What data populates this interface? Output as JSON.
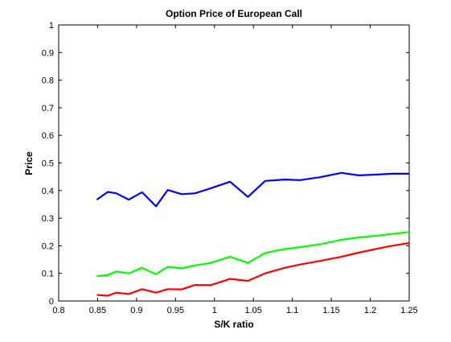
{
  "chart_data": {
    "type": "line",
    "title": "Option Price of European Call",
    "xlabel": "S/K ratio",
    "ylabel": "Price",
    "xlim": [
      0.8,
      1.25
    ],
    "ylim": [
      0,
      1
    ],
    "xticks": [
      0.8,
      0.85,
      0.9,
      0.95,
      1,
      1.05,
      1.1,
      1.15,
      1.2,
      1.25
    ],
    "xtick_labels": [
      "0.8",
      "0.85",
      "0.9",
      "0.95",
      "1",
      "1.05",
      "1.1",
      "1.15",
      "1.2",
      "1.25"
    ],
    "yticks": [
      0,
      0.1,
      0.2,
      0.3,
      0.4,
      0.5,
      0.6,
      0.7,
      0.8,
      0.9,
      1
    ],
    "ytick_labels": [
      "0",
      "0.1",
      "0.2",
      "0.3",
      "0.4",
      "0.5",
      "0.6",
      "0.7",
      "0.8",
      "0.9",
      "1"
    ],
    "grid": false,
    "legend": false,
    "series": [
      {
        "color": "#0000ff",
        "x": [
          0.849,
          0.863,
          0.874,
          0.89,
          0.907,
          0.925,
          0.94,
          0.958,
          0.975,
          0.995,
          1.02,
          1.043,
          1.065,
          1.09,
          1.11,
          1.135,
          1.163,
          1.185,
          1.21,
          1.228,
          1.25
        ],
        "y": [
          0.367,
          0.395,
          0.39,
          0.367,
          0.394,
          0.343,
          0.402,
          0.387,
          0.39,
          0.408,
          0.432,
          0.377,
          0.435,
          0.44,
          0.438,
          0.448,
          0.464,
          0.455,
          0.458,
          0.461,
          0.461
        ]
      },
      {
        "color": "#00ff00",
        "x": [
          0.849,
          0.863,
          0.874,
          0.89,
          0.907,
          0.925,
          0.94,
          0.958,
          0.975,
          0.995,
          1.02,
          1.043,
          1.065,
          1.09,
          1.11,
          1.135,
          1.163,
          1.185,
          1.21,
          1.228,
          1.25
        ],
        "y": [
          0.09,
          0.094,
          0.107,
          0.1,
          0.12,
          0.097,
          0.124,
          0.118,
          0.129,
          0.138,
          0.16,
          0.138,
          0.174,
          0.188,
          0.195,
          0.205,
          0.222,
          0.23,
          0.237,
          0.243,
          0.25
        ]
      },
      {
        "color": "#ff0000",
        "x": [
          0.849,
          0.863,
          0.874,
          0.89,
          0.907,
          0.925,
          0.94,
          0.958,
          0.975,
          0.995,
          1.02,
          1.043,
          1.065,
          1.09,
          1.11,
          1.135,
          1.163,
          1.185,
          1.21,
          1.228,
          1.25
        ],
        "y": [
          0.022,
          0.019,
          0.03,
          0.025,
          0.043,
          0.03,
          0.043,
          0.042,
          0.058,
          0.057,
          0.08,
          0.073,
          0.1,
          0.12,
          0.132,
          0.145,
          0.16,
          0.175,
          0.19,
          0.2,
          0.21
        ]
      }
    ]
  }
}
